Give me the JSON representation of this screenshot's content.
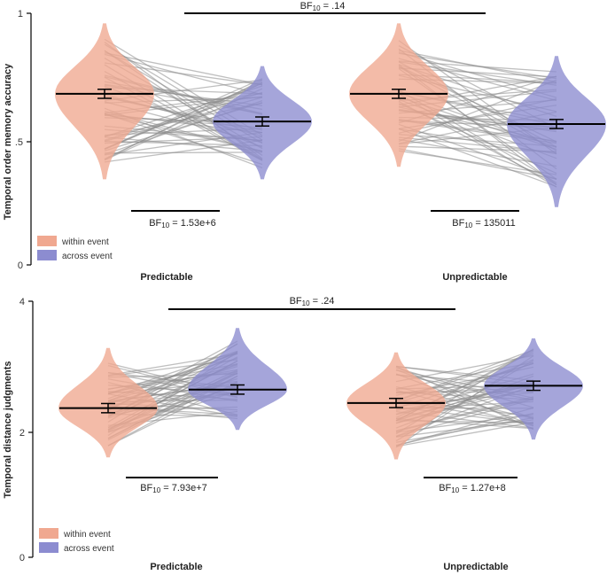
{
  "chart_data": [
    {
      "type": "violin",
      "ylabel": "Temporal order memory accuracy",
      "ylim": [
        0,
        1
      ],
      "yticks": [
        "0",
        ".5",
        "1"
      ],
      "categories": [
        "Predictable",
        "Unpredictable"
      ],
      "series": [
        {
          "name": "within event",
          "color": "#f0a890",
          "means": [
            0.68,
            0.68
          ],
          "ranges": [
            [
              0.34,
              0.96
            ],
            [
              0.39,
              0.96
            ]
          ]
        },
        {
          "name": "across event",
          "color": "#8c8cd0",
          "means": [
            0.57,
            0.56
          ],
          "ranges": [
            [
              0.34,
              0.79
            ],
            [
              0.23,
              0.83
            ]
          ]
        }
      ],
      "comparisons": [
        {
          "label": "BF10 = 1.53e+6",
          "category": "Predictable"
        },
        {
          "label": "BF10 = 135011",
          "category": "Unpredictable"
        }
      ],
      "top_comparison": "BF10 = .14",
      "legend_position": "bottom-left"
    },
    {
      "type": "violin",
      "ylabel": "Temporal distance judgments",
      "ylim": [
        0,
        4
      ],
      "yticks": [
        "0",
        "2",
        "4"
      ],
      "categories": [
        "Predictable",
        "Unpredictable"
      ],
      "series": [
        {
          "name": "within event",
          "color": "#f0a890",
          "means": [
            2.33,
            2.41
          ],
          "ranges": [
            [
              1.56,
              3.27
            ],
            [
              1.53,
              3.2
            ]
          ]
        },
        {
          "name": "across event",
          "color": "#8c8cd0",
          "means": [
            2.62,
            2.68
          ],
          "ranges": [
            [
              1.99,
              3.58
            ],
            [
              1.84,
              3.42
            ]
          ]
        }
      ],
      "comparisons": [
        {
          "label": "BF10 = 7.93e+7",
          "category": "Predictable"
        },
        {
          "label": "BF10 = 1.27e+8",
          "category": "Unpredictable"
        }
      ],
      "top_comparison": "BF10 = .24",
      "legend_position": "bottom-left"
    }
  ]
}
